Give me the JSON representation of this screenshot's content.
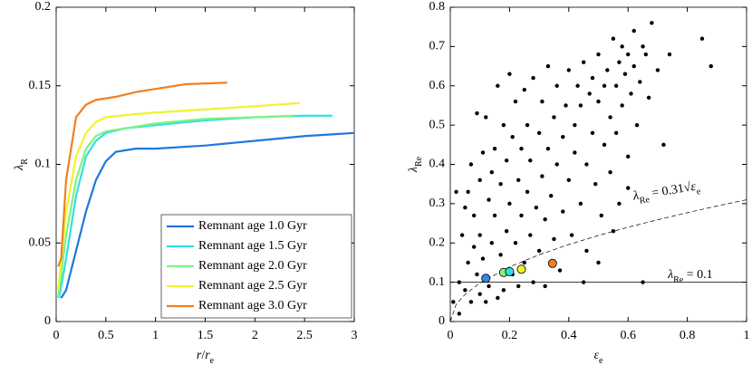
{
  "chart_data": [
    {
      "type": "line",
      "x_label": {
        "parts": [
          {
            "t": "r"
          },
          {
            "t": "/"
          },
          {
            "t": "r"
          },
          {
            "t": "e",
            "sub": true
          }
        ]
      },
      "y_label": {
        "parts": [
          {
            "t": "λ"
          },
          {
            "t": "R",
            "sub": true
          }
        ]
      },
      "xlim": [
        0,
        3
      ],
      "ylim": [
        0,
        0.2
      ],
      "xticks": [
        0,
        0.5,
        1,
        1.5,
        2,
        2.5,
        3
      ],
      "yticks": [
        0,
        0.05,
        0.1,
        0.15,
        0.2
      ],
      "legend": "lower right",
      "series": [
        {
          "name": "Remnant age 1.0 Gyr",
          "color": "#1f77e0",
          "x": [
            0.05,
            0.1,
            0.2,
            0.3,
            0.4,
            0.5,
            0.6,
            0.8,
            1.0,
            1.5,
            2.0,
            2.5,
            3.0
          ],
          "values": [
            0.015,
            0.02,
            0.045,
            0.07,
            0.09,
            0.102,
            0.108,
            0.11,
            0.11,
            0.112,
            0.115,
            0.118,
            0.12
          ]
        },
        {
          "name": "Remnant age 1.5 Gyr",
          "color": "#2fe0e0",
          "x": [
            0.03,
            0.1,
            0.2,
            0.3,
            0.4,
            0.5,
            0.7,
            1.0,
            1.5,
            2.0,
            2.5,
            2.78
          ],
          "values": [
            0.015,
            0.04,
            0.08,
            0.105,
            0.115,
            0.12,
            0.123,
            0.125,
            0.128,
            0.13,
            0.131,
            0.131
          ]
        },
        {
          "name": "Remnant age 2.0 Gyr",
          "color": "#7ff27f",
          "x": [
            0.02,
            0.1,
            0.2,
            0.3,
            0.4,
            0.5,
            0.8,
            1.0,
            1.5,
            2.0,
            2.4
          ],
          "values": [
            0.015,
            0.055,
            0.09,
            0.11,
            0.118,
            0.121,
            0.124,
            0.126,
            0.129,
            0.13,
            0.131
          ]
        },
        {
          "name": "Remnant age 2.5 Gyr",
          "color": "#f2f22a",
          "x": [
            0.02,
            0.1,
            0.2,
            0.3,
            0.4,
            0.5,
            0.8,
            1.0,
            1.5,
            2.0,
            2.45
          ],
          "values": [
            0.02,
            0.07,
            0.105,
            0.12,
            0.127,
            0.13,
            0.132,
            0.133,
            0.135,
            0.137,
            0.139
          ]
        },
        {
          "name": "Remnant age 3.0 Gyr",
          "color": "#f08020",
          "x": [
            0.02,
            0.05,
            0.1,
            0.2,
            0.3,
            0.4,
            0.6,
            0.8,
            1.0,
            1.3,
            1.72
          ],
          "values": [
            0.035,
            0.04,
            0.09,
            0.13,
            0.138,
            0.141,
            0.143,
            0.146,
            0.148,
            0.151,
            0.152
          ]
        }
      ]
    },
    {
      "type": "scatter",
      "x_label": {
        "parts": [
          {
            "t": "ε"
          },
          {
            "t": "e",
            "sub": true
          }
        ]
      },
      "y_label": {
        "parts": [
          {
            "t": "λ"
          },
          {
            "t": "Re",
            "sub": true
          }
        ]
      },
      "xlim": [
        0,
        1
      ],
      "ylim": [
        0,
        0.8
      ],
      "xticks": [
        0,
        0.2,
        0.4,
        0.6,
        0.8,
        1
      ],
      "yticks": [
        0,
        0.1,
        0.2,
        0.3,
        0.4,
        0.5,
        0.6,
        0.7,
        0.8
      ],
      "points": {
        "color": "#000000",
        "x": [
          0.01,
          0.02,
          0.03,
          0.03,
          0.04,
          0.05,
          0.05,
          0.06,
          0.06,
          0.07,
          0.07,
          0.08,
          0.08,
          0.09,
          0.09,
          0.1,
          0.1,
          0.1,
          0.11,
          0.11,
          0.12,
          0.12,
          0.13,
          0.13,
          0.14,
          0.14,
          0.15,
          0.15,
          0.16,
          0.16,
          0.17,
          0.17,
          0.18,
          0.18,
          0.19,
          0.19,
          0.2,
          0.2,
          0.21,
          0.21,
          0.22,
          0.22,
          0.23,
          0.23,
          0.24,
          0.24,
          0.25,
          0.25,
          0.26,
          0.26,
          0.27,
          0.27,
          0.28,
          0.28,
          0.29,
          0.3,
          0.3,
          0.31,
          0.31,
          0.32,
          0.32,
          0.33,
          0.33,
          0.34,
          0.35,
          0.35,
          0.36,
          0.36,
          0.37,
          0.38,
          0.38,
          0.39,
          0.4,
          0.4,
          0.41,
          0.42,
          0.42,
          0.43,
          0.44,
          0.44,
          0.45,
          0.46,
          0.46,
          0.47,
          0.48,
          0.48,
          0.49,
          0.5,
          0.5,
          0.51,
          0.52,
          0.52,
          0.53,
          0.54,
          0.54,
          0.55,
          0.56,
          0.56,
          0.57,
          0.57,
          0.58,
          0.58,
          0.59,
          0.6,
          0.6,
          0.61,
          0.62,
          0.62,
          0.63,
          0.64,
          0.65,
          0.66,
          0.67,
          0.68,
          0.7,
          0.72,
          0.74,
          0.85,
          0.88,
          0.65,
          0.6,
          0.55,
          0.45,
          0.5
        ],
        "values": [
          0.05,
          0.33,
          0.1,
          0.02,
          0.22,
          0.29,
          0.08,
          0.15,
          0.33,
          0.4,
          0.05,
          0.27,
          0.19,
          0.53,
          0.12,
          0.36,
          0.07,
          0.22,
          0.43,
          0.16,
          0.52,
          0.05,
          0.31,
          0.09,
          0.38,
          0.2,
          0.27,
          0.44,
          0.06,
          0.6,
          0.35,
          0.17,
          0.5,
          0.08,
          0.41,
          0.23,
          0.63,
          0.3,
          0.12,
          0.47,
          0.56,
          0.2,
          0.36,
          0.09,
          0.44,
          0.27,
          0.59,
          0.15,
          0.33,
          0.5,
          0.22,
          0.41,
          0.1,
          0.62,
          0.29,
          0.48,
          0.18,
          0.37,
          0.56,
          0.26,
          0.09,
          0.44,
          0.65,
          0.32,
          0.52,
          0.21,
          0.4,
          0.6,
          0.13,
          0.47,
          0.28,
          0.55,
          0.36,
          0.64,
          0.22,
          0.5,
          0.43,
          0.6,
          0.3,
          0.55,
          0.66,
          0.4,
          0.18,
          0.58,
          0.48,
          0.62,
          0.35,
          0.56,
          0.68,
          0.27,
          0.6,
          0.45,
          0.64,
          0.52,
          0.38,
          0.72,
          0.6,
          0.48,
          0.66,
          0.3,
          0.7,
          0.55,
          0.63,
          0.68,
          0.42,
          0.58,
          0.65,
          0.74,
          0.5,
          0.61,
          0.1,
          0.68,
          0.57,
          0.76,
          0.64,
          0.45,
          0.68,
          0.72,
          0.65,
          0.7,
          0.34,
          0.23,
          0.1,
          0.15
        ]
      },
      "highlights": [
        {
          "color": "#3a86e8",
          "x": 0.12,
          "value": 0.11
        },
        {
          "color": "#7ff27f",
          "x": 0.18,
          "value": 0.125
        },
        {
          "color": "#2fe0e0",
          "x": 0.2,
          "value": 0.127
        },
        {
          "color": "#f2f22a",
          "x": 0.24,
          "value": 0.133
        },
        {
          "color": "#f08020",
          "x": 0.345,
          "value": 0.148
        }
      ],
      "reference_curve": {
        "x": [
          0,
          0.02,
          0.05,
          0.1,
          0.2,
          0.3,
          0.4,
          0.5,
          0.6,
          0.7,
          0.8,
          0.9,
          1
        ],
        "values": [
          0,
          0.044,
          0.069,
          0.098,
          0.139,
          0.17,
          0.196,
          0.219,
          0.24,
          0.259,
          0.277,
          0.294,
          0.31
        ]
      },
      "hline": 0.1,
      "annotations": [
        {
          "parts": [
            {
              "t": "λ"
            },
            {
              "t": "Re",
              "sub": true
            },
            {
              "t": " = 0.31"
            },
            {
              "t": "√"
            },
            {
              "t": "ε"
            },
            {
              "t": "e",
              "sub": true
            }
          ]
        },
        {
          "parts": [
            {
              "t": "λ"
            },
            {
              "t": "Re",
              "sub": true
            },
            {
              "t": " = 0.1"
            }
          ]
        }
      ]
    }
  ]
}
